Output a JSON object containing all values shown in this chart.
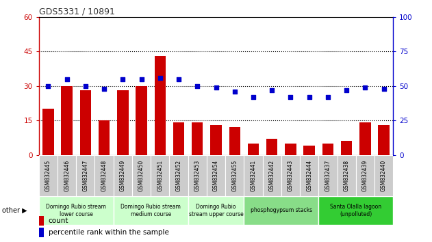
{
  "title": "GDS5331 / 10891",
  "samples": [
    "GSM832445",
    "GSM832446",
    "GSM832447",
    "GSM832448",
    "GSM832449",
    "GSM832450",
    "GSM832451",
    "GSM832452",
    "GSM832453",
    "GSM832454",
    "GSM832455",
    "GSM832441",
    "GSM832442",
    "GSM832443",
    "GSM832444",
    "GSM832437",
    "GSM832438",
    "GSM832439",
    "GSM832440"
  ],
  "counts": [
    20,
    30,
    28,
    15,
    28,
    30,
    43,
    14,
    14,
    13,
    12,
    5,
    7,
    5,
    4,
    5,
    6,
    14,
    13
  ],
  "percentiles": [
    50,
    55,
    50,
    48,
    55,
    55,
    56,
    55,
    50,
    49,
    46,
    42,
    47,
    42,
    42,
    42,
    47,
    49,
    48
  ],
  "bar_color": "#cc0000",
  "dot_color": "#0000cc",
  "left_ylim": [
    0,
    60
  ],
  "right_ylim": [
    0,
    100
  ],
  "left_yticks": [
    0,
    15,
    30,
    45,
    60
  ],
  "right_yticks": [
    0,
    25,
    50,
    75,
    100
  ],
  "groups": [
    {
      "label": "Domingo Rubio stream\nlower course",
      "start": 0,
      "end": 4,
      "color": "#ccffcc"
    },
    {
      "label": "Domingo Rubio stream\nmedium course",
      "start": 4,
      "end": 8,
      "color": "#ccffcc"
    },
    {
      "label": "Domingo Rubio\nstream upper course",
      "start": 8,
      "end": 11,
      "color": "#ccffcc"
    },
    {
      "label": "phosphogypsum stacks",
      "start": 11,
      "end": 15,
      "color": "#88dd88"
    },
    {
      "label": "Santa Olalla lagoon\n(unpolluted)",
      "start": 15,
      "end": 19,
      "color": "#33cc33"
    }
  ],
  "legend_count_label": "count",
  "legend_pct_label": "percentile rank within the sample",
  "dotted_gridlines": [
    15,
    30,
    45
  ],
  "xtick_bg": "#cccccc",
  "title_color": "#333333"
}
